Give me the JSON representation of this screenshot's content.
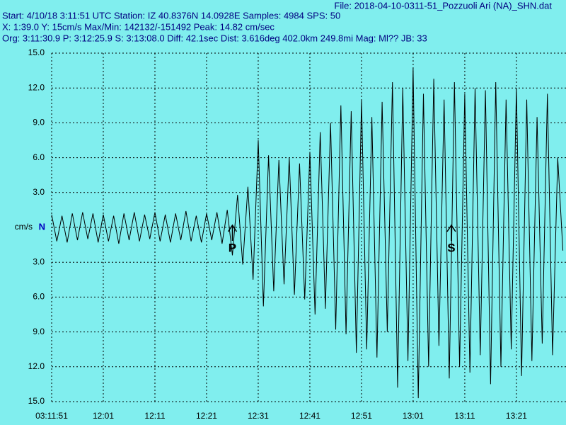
{
  "chart_data": {
    "type": "line",
    "file": "File: 2018-04-10-0311-51_Pozzuoli Ari (NA)_SHN.dat",
    "title": "Start: 4/10/18  3:11:51 UTC Station: IZ 40.8376N 14.0928E Samples: 4984  SPS: 50",
    "subtitle": "X: 1:39.0 Y: 15cm/s Max/Min: 142132/-151492  Peak: 14.82 cm/sec",
    "info": "Org: 3:11:30.9 P: 3:12:25.9 S: 3:13:08.0 Diff: 42.1sec Dist: 3.616deg 402.0km 249.8mi  Mag: Ml?? JB: 33",
    "channel": "N",
    "grid": true,
    "color": "#000000",
    "xlim": [
      0,
      99.6
    ],
    "ylim": [
      -15,
      15
    ],
    "xticks": [
      {
        "value": 0,
        "label": "03:11:51"
      },
      {
        "value": 10,
        "label": "12:01"
      },
      {
        "value": 20,
        "label": "12:11"
      },
      {
        "value": 30,
        "label": "12:21"
      },
      {
        "value": 40,
        "label": "12:31"
      },
      {
        "value": 50,
        "label": "12:41"
      },
      {
        "value": 60,
        "label": "12:51"
      },
      {
        "value": 70,
        "label": "13:01"
      },
      {
        "value": 80,
        "label": "13:11"
      },
      {
        "value": 90,
        "label": "13:21"
      }
    ],
    "yticks": [
      {
        "value": 15,
        "label": "15.0"
      },
      {
        "value": 12,
        "label": "12.0"
      },
      {
        "value": 9,
        "label": "9.0"
      },
      {
        "value": 6,
        "label": "6.0"
      },
      {
        "value": 3,
        "label": "3.0"
      },
      {
        "value": 0,
        "label": "cm/s"
      },
      {
        "value": -3,
        "label": "3.0"
      },
      {
        "value": -6,
        "label": "6.0"
      },
      {
        "value": -9,
        "label": "9.0"
      },
      {
        "value": -12,
        "label": "12.0"
      },
      {
        "value": -15,
        "label": "15.0"
      }
    ],
    "annotations": [
      {
        "text": "P",
        "x": 35
      },
      {
        "text": "S",
        "x": 77.4
      }
    ],
    "x": [
      0,
      1,
      2,
      3,
      4,
      5,
      6,
      7,
      8,
      9,
      10,
      11,
      12,
      13,
      14,
      15,
      16,
      17,
      18,
      19,
      20,
      21,
      22,
      23,
      24,
      25,
      26,
      27,
      28,
      29,
      30,
      31,
      32,
      33,
      34,
      35,
      36,
      37,
      38,
      39,
      40,
      41,
      42,
      43,
      44,
      45,
      46,
      47,
      48,
      49,
      50,
      51,
      52,
      53,
      54,
      55,
      56,
      57,
      58,
      59,
      60,
      61,
      62,
      63,
      64,
      65,
      66,
      67,
      68,
      69,
      70,
      71,
      72,
      73,
      74,
      75,
      76,
      77,
      78,
      79,
      80,
      81,
      82,
      83,
      84,
      85,
      86,
      87,
      88,
      89,
      90,
      91,
      92,
      93,
      94,
      95,
      96,
      97,
      98,
      99
    ],
    "values": [
      1.1,
      -1.2,
      1.0,
      -1.3,
      1.2,
      -1.1,
      1.3,
      -1.0,
      1.2,
      -1.3,
      1.1,
      -1.2,
      1.0,
      -1.4,
      1.2,
      -1.1,
      1.3,
      -1.2,
      1.1,
      -1.0,
      1.3,
      -1.2,
      1.1,
      -1.3,
      1.2,
      -1.1,
      1.4,
      -1.2,
      1.0,
      -1.3,
      1.2,
      -1.1,
      1.3,
      -1.4,
      1.5,
      -2.4,
      2.8,
      -3.2,
      3.5,
      -4.5,
      7.5,
      -6.8,
      6.2,
      -5.5,
      5.8,
      -4.9,
      6.0,
      -5.8,
      5.5,
      -6.2,
      6.5,
      -7.5,
      8.2,
      -7.0,
      9.0,
      -8.8,
      10.5,
      -9.2,
      10.0,
      -10.8,
      11.0,
      -10.5,
      9.5,
      -11.2,
      10.8,
      -9.0,
      12.5,
      -13.8,
      12.0,
      -11.5,
      13.7,
      -14.7,
      11.5,
      -12.0,
      12.8,
      -10.2,
      11.0,
      -13.0,
      12.5,
      -12.0,
      11.5,
      -12.5,
      12.0,
      -11.0,
      11.8,
      -13.5,
      12.5,
      -12.0,
      11.0,
      -10.5,
      12.0,
      -12.8,
      11.0,
      -11.5,
      9.5,
      -10.0,
      11.5,
      -11.0,
      6.0,
      -2.0
    ]
  }
}
